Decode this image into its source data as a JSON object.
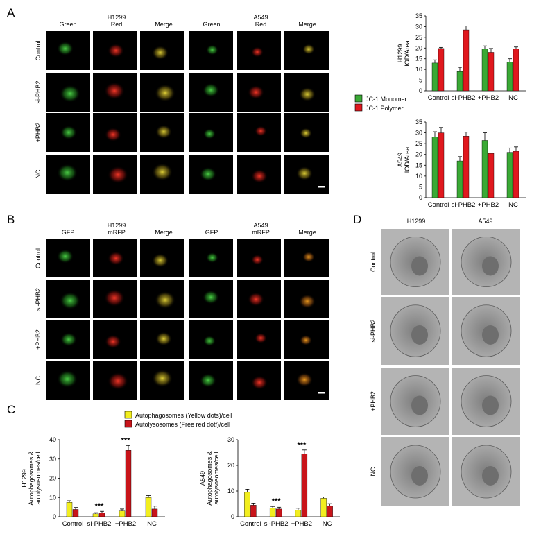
{
  "panel_labels": {
    "a": "A",
    "b": "B",
    "c": "C",
    "d": "D"
  },
  "panel_a": {
    "h1299_header": [
      "H1299",
      "Red"
    ],
    "a549_header": [
      "A549",
      "Red"
    ],
    "columns": [
      "Green",
      "Red",
      "Merge",
      "Green",
      "Red",
      "Merge"
    ],
    "rows": [
      "Control",
      "si-PHB2",
      "+PHB2",
      "NC"
    ]
  },
  "panel_b": {
    "h1299_header": [
      "H1299",
      "mRFP"
    ],
    "a549_header": [
      "A549",
      "mRFP"
    ],
    "columns": [
      "GFP",
      "mRFP",
      "Merge",
      "GFP",
      "mRFP",
      "Merge"
    ],
    "rows": [
      "Control",
      "si-PHB2",
      "+PHB2",
      "NC"
    ]
  },
  "panel_d": {
    "columns": [
      "H1299",
      "A549"
    ],
    "rows": [
      "Control",
      "si-PHB2",
      "+PHB2",
      "NC"
    ]
  },
  "colors": {
    "green": "#3aa935",
    "red": "#e0181e",
    "yellow": "#f2ee1e",
    "darkred": "#c8141a"
  },
  "chart_data": [
    {
      "id": "a_h1299",
      "type": "bar",
      "categories": [
        "Control",
        "si-PHB2",
        "+PHB2",
        "NC"
      ],
      "ylabel": [
        "H1299",
        "IOD/Area"
      ],
      "ylim": [
        0,
        35
      ],
      "yticks": [
        0,
        5,
        10,
        15,
        20,
        25,
        30,
        35
      ],
      "series": [
        {
          "name": "JC-1 Monomer",
          "color": "#3aa935",
          "values": [
            13,
            9,
            19.5,
            13.5
          ],
          "errors": [
            1.5,
            2,
            1.5,
            1.5
          ]
        },
        {
          "name": "JC-1 Polymer",
          "color": "#e0181e",
          "values": [
            19.8,
            28.5,
            18,
            19.5
          ],
          "errors": [
            0.5,
            1.8,
            1.8,
            1
          ]
        }
      ]
    },
    {
      "id": "a_a549",
      "type": "bar",
      "categories": [
        "Control",
        "si-PHB2",
        "+PHB2",
        "NC"
      ],
      "ylabel": [
        "A549",
        "IOD/Area"
      ],
      "ylim": [
        0,
        35
      ],
      "yticks": [
        0,
        5,
        10,
        15,
        20,
        25,
        30,
        35
      ],
      "series": [
        {
          "name": "JC-1 Monomer",
          "color": "#3aa935",
          "values": [
            28,
            17,
            26.5,
            21
          ],
          "errors": [
            2.5,
            2,
            3.5,
            2
          ]
        },
        {
          "name": "JC-1 Polymer",
          "color": "#e0181e",
          "values": [
            30,
            28.5,
            20.5,
            21.5
          ],
          "errors": [
            2.5,
            1.8,
            0,
            2
          ]
        }
      ]
    },
    {
      "id": "c_h1299",
      "type": "bar",
      "categories": [
        "Control",
        "si-PHB2",
        "+PHB2",
        "NC"
      ],
      "ylabel": [
        "H1299",
        "Autophagosomes &",
        "autolysosomes/cell"
      ],
      "ylim": [
        0,
        40
      ],
      "yticks": [
        0,
        10,
        20,
        30,
        40
      ],
      "annotations": [
        "",
        "***",
        "***",
        ""
      ],
      "series": [
        {
          "name": "Autophagosomes (Yellow dots)/cell",
          "color": "#f2ee1e",
          "values": [
            7.5,
            1.5,
            3,
            10
          ],
          "errors": [
            0.8,
            0.6,
            1,
            1
          ]
        },
        {
          "name": "Autolysosomes (Free red dotf)/cell",
          "color": "#c8141a",
          "values": [
            3.8,
            2,
            34.5,
            4
          ],
          "errors": [
            1,
            0.8,
            2.5,
            1.5
          ]
        }
      ]
    },
    {
      "id": "c_a549",
      "type": "bar",
      "categories": [
        "Control",
        "si-PHB2",
        "+PHB2",
        "NC"
      ],
      "ylabel": [
        "A549",
        "Autophagosomes &",
        "autolysosomes/cell"
      ],
      "ylim": [
        0,
        30
      ],
      "yticks": [
        0,
        10,
        20,
        30
      ],
      "annotations": [
        "",
        "***",
        "***",
        ""
      ],
      "series": [
        {
          "name": "Autophagosomes (Yellow dots)/cell",
          "color": "#f2ee1e",
          "values": [
            9.5,
            3.3,
            2.5,
            7.2
          ],
          "errors": [
            1.2,
            0.7,
            0.8,
            0.5
          ]
        },
        {
          "name": "Autolysosomes (Free red dotf)/cell",
          "color": "#c8141a",
          "values": [
            4.5,
            3,
            24.5,
            4.2
          ],
          "errors": [
            0.8,
            0.7,
            1.5,
            0.9
          ]
        }
      ]
    }
  ],
  "legend_a": [
    "JC-1 Monomer",
    "JC-1 Polymer"
  ],
  "legend_c": [
    "Autophagosomes (Yellow dots)/cell",
    "Autolysosomes (Free red dotf)/cell"
  ]
}
